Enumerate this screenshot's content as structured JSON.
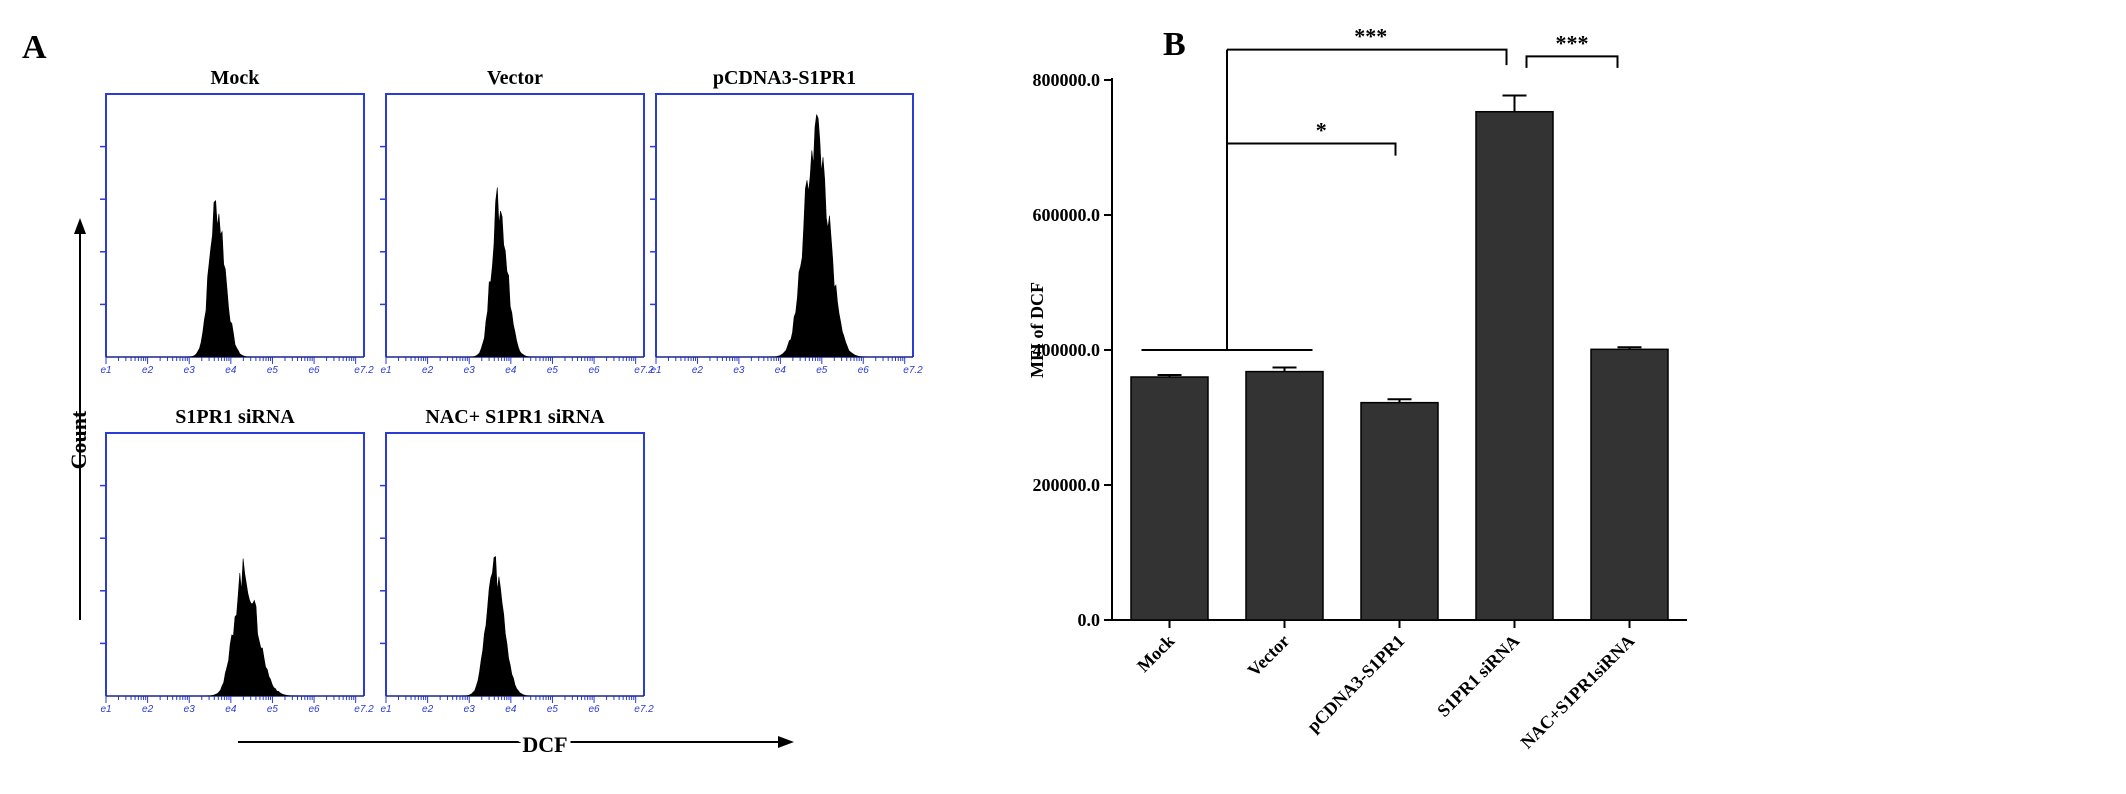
{
  "figure": {
    "panel_a_label": "A",
    "panel_b_label": "B",
    "count_label": "Count",
    "dcf_label": "DCF"
  },
  "histogram_panels": [
    {
      "title": "Mock",
      "peak_log": 3.65,
      "spread": 0.18,
      "peak_height": 0.57,
      "skew": 0.15
    },
    {
      "title": "Vector",
      "peak_log": 3.7,
      "spread": 0.18,
      "peak_height": 0.57,
      "skew": 0.15
    },
    {
      "title": "pCDNA3-S1PR1",
      "peak_log": 4.85,
      "spread": 0.28,
      "peak_height": 0.85,
      "skew": 0.1
    },
    {
      "title": "S1PR1 siRNA",
      "peak_log": 4.3,
      "spread": 0.25,
      "peak_height": 0.46,
      "skew": 0.3
    },
    {
      "title": "NAC+ S1PR1 siRNA",
      "peak_log": 3.6,
      "spread": 0.2,
      "peak_height": 0.48,
      "skew": 0.15
    }
  ],
  "histogram_axis": {
    "tick_labels": [
      "e1",
      "e2",
      "e3",
      "e4",
      "e5",
      "e6",
      "e7.2"
    ],
    "range": [
      1,
      7.2
    ]
  },
  "chart_data": {
    "type": "bar",
    "categories": [
      "Mock",
      "Vector",
      "pCDNA3-S1PR1",
      "S1PR1 siRNA",
      "NAC+S1PR1siRNA"
    ],
    "values": [
      360000,
      368000,
      322000,
      753000,
      401000
    ],
    "errors": [
      3000,
      6000,
      5000,
      24000,
      3000
    ],
    "ylabel": "MFI of DCF",
    "ylim": [
      0,
      800000
    ],
    "yticks": [
      "0.0",
      "200000.0",
      "400000.0",
      "600000.0",
      "800000.0"
    ],
    "yticks_values": [
      0,
      200000,
      400000,
      600000,
      800000
    ],
    "colors": {
      "bar": "#333333",
      "axis": "#000000",
      "frame": "#2b3bd6"
    },
    "significance": [
      {
        "label": "***",
        "from": "Mock+Vector",
        "to": "S1PR1 siRNA"
      },
      {
        "label": "*",
        "from": "Mock+Vector",
        "to": "pCDNA3-S1PR1"
      },
      {
        "label": "***",
        "from": "S1PR1 siRNA",
        "to": "NAC+S1PR1siRNA"
      }
    ]
  }
}
